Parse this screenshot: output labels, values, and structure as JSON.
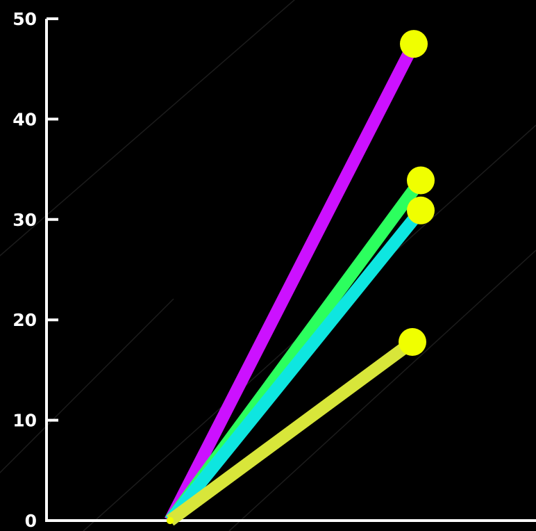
{
  "chart_data": {
    "type": "line",
    "title": "",
    "xlabel": "",
    "ylabel": "",
    "ylim": [
      0,
      50
    ],
    "yticks": [
      0,
      10,
      20,
      30,
      40,
      50
    ],
    "ytick_labels": [
      "0",
      "10",
      "20",
      "30",
      "40",
      "50"
    ],
    "grid": false,
    "legend": "none",
    "x": [
      0,
      1
    ],
    "series": [
      {
        "values": [
          0,
          47.5
        ],
        "color": "#cc11ff"
      },
      {
        "values": [
          0,
          33.9
        ],
        "color": "#2cff5e"
      },
      {
        "values": [
          0,
          30.9
        ],
        "color": "#0ee6e0"
      },
      {
        "values": [
          0,
          17.8
        ],
        "color": "#d8e63a"
      }
    ],
    "marker_color": "#f0ff00",
    "background_color": "#000000",
    "axis_color": "#ffffff"
  }
}
